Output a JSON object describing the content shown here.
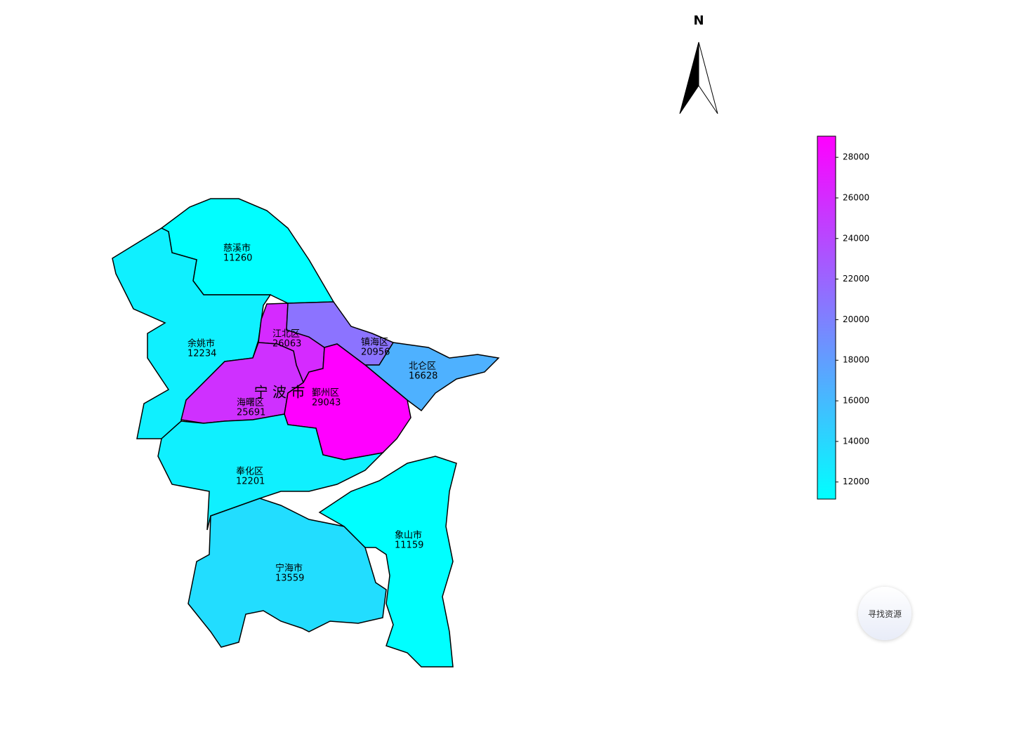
{
  "chart_data": {
    "type": "choropleth",
    "title": "宁 波 市",
    "north_label": "N",
    "colormap": "cool",
    "regions": [
      {
        "name": "慈溪市",
        "value": 11260
      },
      {
        "name": "余姚市",
        "value": 12234
      },
      {
        "name": "江北区",
        "value": 26063
      },
      {
        "name": "镇海区",
        "value": 20956
      },
      {
        "name": "北仑区",
        "value": 16628
      },
      {
        "name": "海曙区",
        "value": 25691
      },
      {
        "name": "鄞州区",
        "value": 29043
      },
      {
        "name": "奉化区",
        "value": 12201
      },
      {
        "name": "宁海市",
        "value": 13559
      },
      {
        "name": "象山市",
        "value": 11159
      }
    ],
    "clim": [
      11159,
      29043
    ],
    "cticks": [
      12000,
      14000,
      16000,
      18000,
      20000,
      22000,
      24000,
      26000,
      28000
    ]
  },
  "button": "寻找资源"
}
